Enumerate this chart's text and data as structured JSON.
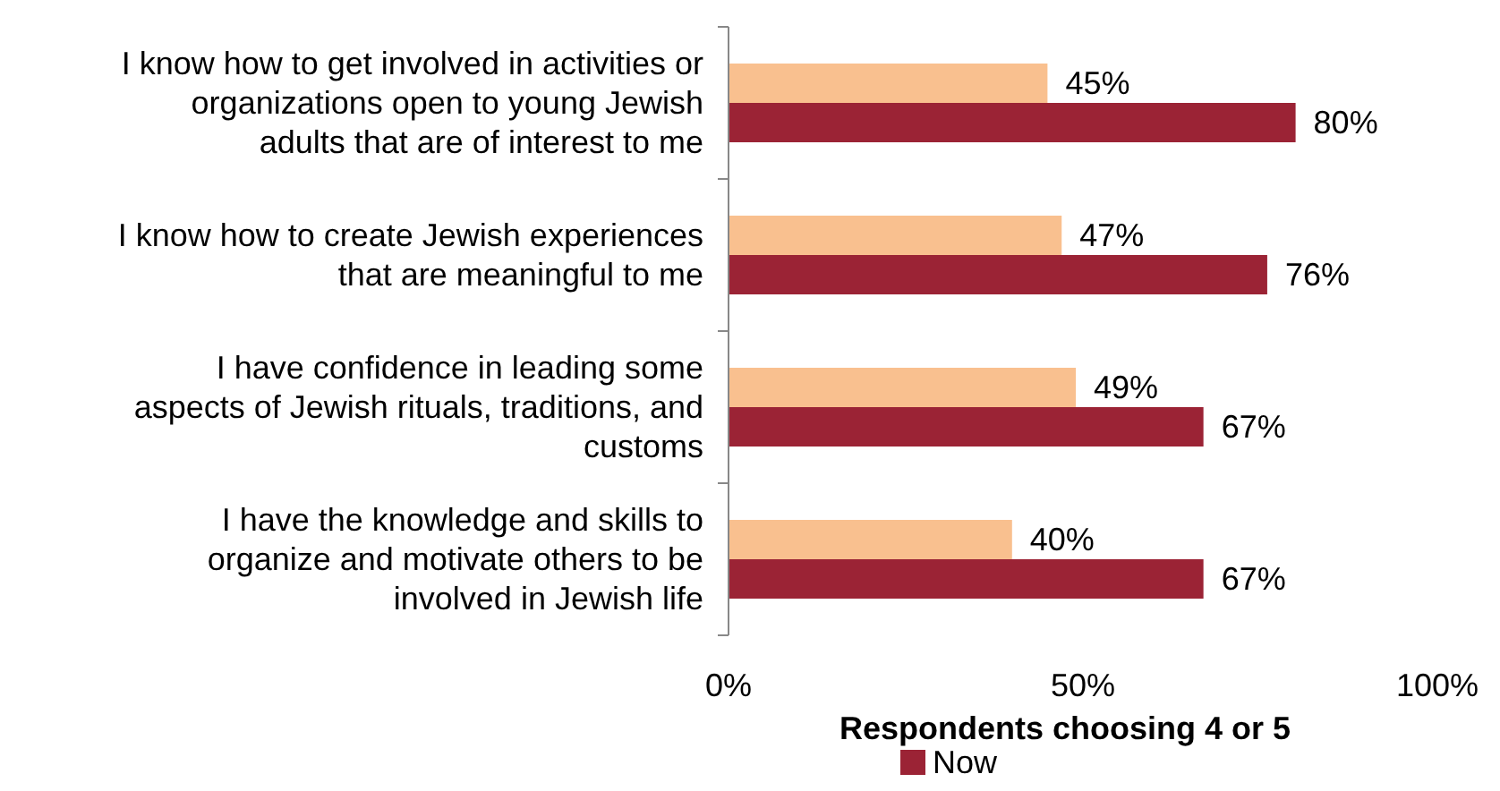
{
  "chart_data": {
    "type": "bar",
    "orientation": "horizontal",
    "xlabel": "Respondents choosing 4 or 5",
    "categories": [
      "I know how to get involved in activities or organizations open to young Jewish adults that are of interest to me",
      "I know how to create Jewish experiences that are meaningful to me",
      "I have confidence in leading some aspects of Jewish rituals, traditions, and customs",
      "I have the knowledge and skills to organize and motivate others to be involved in Jewish life"
    ],
    "series": [
      {
        "color": "#f9c08f",
        "values": [
          45,
          47,
          49,
          40
        ],
        "value_labels": [
          "45%",
          "47%",
          "49%",
          "40%"
        ]
      },
      {
        "name": "Now",
        "color": "#9b2335",
        "values": [
          80,
          76,
          67,
          67
        ],
        "value_labels": [
          "80%",
          "76%",
          "67%",
          "67%"
        ]
      }
    ],
    "xlim": [
      0,
      100
    ],
    "xticks": [
      {
        "value": 0,
        "label": "0%"
      },
      {
        "value": 50,
        "label": "50%"
      },
      {
        "value": 100,
        "label": "100%"
      }
    ],
    "legend": "bottom"
  }
}
